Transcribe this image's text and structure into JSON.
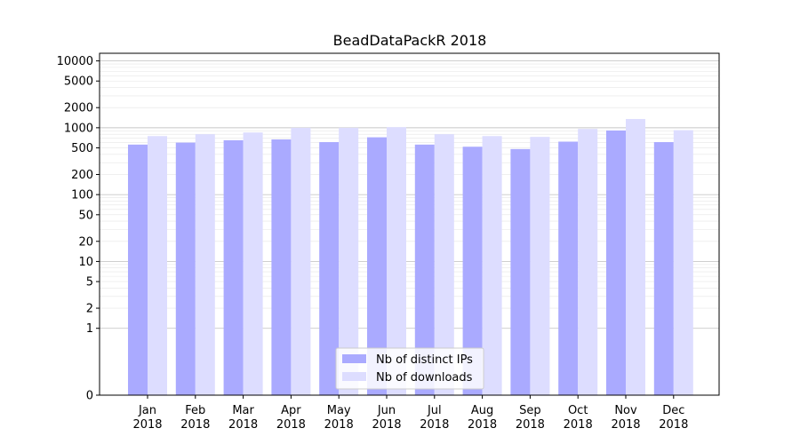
{
  "chart_data": {
    "type": "bar",
    "title": "BeadDataPackR 2018",
    "xlabel": "",
    "ylabel": "",
    "categories": [
      "Jan\n2018",
      "Feb\n2018",
      "Mar\n2018",
      "Apr\n2018",
      "May\n2018",
      "Jun\n2018",
      "Jul\n2018",
      "Aug\n2018",
      "Sep\n2018",
      "Oct\n2018",
      "Nov\n2018",
      "Dec\n2018"
    ],
    "series": [
      {
        "name": "Nb of distinct IPs",
        "color": "#aaaaff",
        "values": [
          560,
          600,
          650,
          670,
          610,
          720,
          560,
          520,
          480,
          620,
          910,
          610
        ]
      },
      {
        "name": "Nb of downloads",
        "color": "#ddddff",
        "values": [
          750,
          800,
          850,
          1000,
          1000,
          1020,
          800,
          750,
          730,
          960,
          1350,
          920
        ]
      }
    ],
    "y_scale": "symlog",
    "ylim": [
      0,
      13000
    ],
    "yticks": [
      0,
      1,
      2,
      5,
      10,
      20,
      50,
      100,
      200,
      500,
      1000,
      2000,
      5000,
      10000
    ],
    "ytick_labels": [
      "0",
      "1",
      "2",
      "5",
      "10",
      "20",
      "50",
      "100",
      "200",
      "500",
      "1000",
      "2000",
      "5000",
      "10000"
    ],
    "grid": "y-major-and-minor",
    "legend_position": "bottom-center"
  }
}
